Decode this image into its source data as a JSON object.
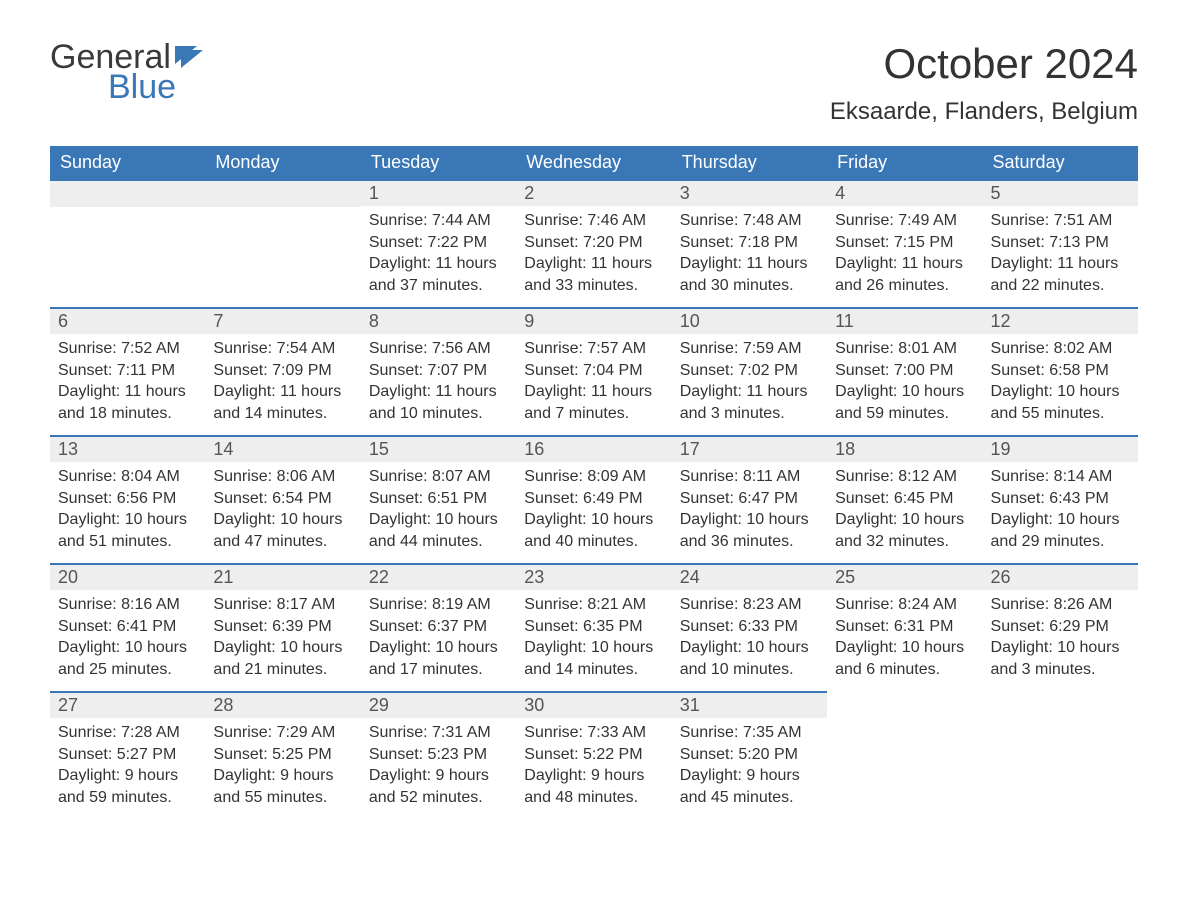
{
  "brand": {
    "name_general": "General",
    "name_blue": "Blue",
    "flag_color": "#3a77b7",
    "text_color": "#3a3a3a"
  },
  "header": {
    "month_title": "October 2024",
    "location": "Eksaarde, Flanders, Belgium"
  },
  "calendar": {
    "type": "table",
    "header_bg": "#3a77b7",
    "header_text_color": "#ffffff",
    "day_bar_bg": "#eeeeee",
    "day_bar_border_top": "#3a77b7",
    "body_text_color": "#333333",
    "background_color": "#ffffff",
    "header_fontsize": 18,
    "daynum_fontsize": 18,
    "body_fontsize": 16,
    "columns": [
      "Sunday",
      "Monday",
      "Tuesday",
      "Wednesday",
      "Thursday",
      "Friday",
      "Saturday"
    ],
    "weeks": [
      [
        null,
        null,
        {
          "num": "1",
          "sunrise": "Sunrise: 7:44 AM",
          "sunset": "Sunset: 7:22 PM",
          "day1": "Daylight: 11 hours",
          "day2": "and 37 minutes."
        },
        {
          "num": "2",
          "sunrise": "Sunrise: 7:46 AM",
          "sunset": "Sunset: 7:20 PM",
          "day1": "Daylight: 11 hours",
          "day2": "and 33 minutes."
        },
        {
          "num": "3",
          "sunrise": "Sunrise: 7:48 AM",
          "sunset": "Sunset: 7:18 PM",
          "day1": "Daylight: 11 hours",
          "day2": "and 30 minutes."
        },
        {
          "num": "4",
          "sunrise": "Sunrise: 7:49 AM",
          "sunset": "Sunset: 7:15 PM",
          "day1": "Daylight: 11 hours",
          "day2": "and 26 minutes."
        },
        {
          "num": "5",
          "sunrise": "Sunrise: 7:51 AM",
          "sunset": "Sunset: 7:13 PM",
          "day1": "Daylight: 11 hours",
          "day2": "and 22 minutes."
        }
      ],
      [
        {
          "num": "6",
          "sunrise": "Sunrise: 7:52 AM",
          "sunset": "Sunset: 7:11 PM",
          "day1": "Daylight: 11 hours",
          "day2": "and 18 minutes."
        },
        {
          "num": "7",
          "sunrise": "Sunrise: 7:54 AM",
          "sunset": "Sunset: 7:09 PM",
          "day1": "Daylight: 11 hours",
          "day2": "and 14 minutes."
        },
        {
          "num": "8",
          "sunrise": "Sunrise: 7:56 AM",
          "sunset": "Sunset: 7:07 PM",
          "day1": "Daylight: 11 hours",
          "day2": "and 10 minutes."
        },
        {
          "num": "9",
          "sunrise": "Sunrise: 7:57 AM",
          "sunset": "Sunset: 7:04 PM",
          "day1": "Daylight: 11 hours",
          "day2": "and 7 minutes."
        },
        {
          "num": "10",
          "sunrise": "Sunrise: 7:59 AM",
          "sunset": "Sunset: 7:02 PM",
          "day1": "Daylight: 11 hours",
          "day2": "and 3 minutes."
        },
        {
          "num": "11",
          "sunrise": "Sunrise: 8:01 AM",
          "sunset": "Sunset: 7:00 PM",
          "day1": "Daylight: 10 hours",
          "day2": "and 59 minutes."
        },
        {
          "num": "12",
          "sunrise": "Sunrise: 8:02 AM",
          "sunset": "Sunset: 6:58 PM",
          "day1": "Daylight: 10 hours",
          "day2": "and 55 minutes."
        }
      ],
      [
        {
          "num": "13",
          "sunrise": "Sunrise: 8:04 AM",
          "sunset": "Sunset: 6:56 PM",
          "day1": "Daylight: 10 hours",
          "day2": "and 51 minutes."
        },
        {
          "num": "14",
          "sunrise": "Sunrise: 8:06 AM",
          "sunset": "Sunset: 6:54 PM",
          "day1": "Daylight: 10 hours",
          "day2": "and 47 minutes."
        },
        {
          "num": "15",
          "sunrise": "Sunrise: 8:07 AM",
          "sunset": "Sunset: 6:51 PM",
          "day1": "Daylight: 10 hours",
          "day2": "and 44 minutes."
        },
        {
          "num": "16",
          "sunrise": "Sunrise: 8:09 AM",
          "sunset": "Sunset: 6:49 PM",
          "day1": "Daylight: 10 hours",
          "day2": "and 40 minutes."
        },
        {
          "num": "17",
          "sunrise": "Sunrise: 8:11 AM",
          "sunset": "Sunset: 6:47 PM",
          "day1": "Daylight: 10 hours",
          "day2": "and 36 minutes."
        },
        {
          "num": "18",
          "sunrise": "Sunrise: 8:12 AM",
          "sunset": "Sunset: 6:45 PM",
          "day1": "Daylight: 10 hours",
          "day2": "and 32 minutes."
        },
        {
          "num": "19",
          "sunrise": "Sunrise: 8:14 AM",
          "sunset": "Sunset: 6:43 PM",
          "day1": "Daylight: 10 hours",
          "day2": "and 29 minutes."
        }
      ],
      [
        {
          "num": "20",
          "sunrise": "Sunrise: 8:16 AM",
          "sunset": "Sunset: 6:41 PM",
          "day1": "Daylight: 10 hours",
          "day2": "and 25 minutes."
        },
        {
          "num": "21",
          "sunrise": "Sunrise: 8:17 AM",
          "sunset": "Sunset: 6:39 PM",
          "day1": "Daylight: 10 hours",
          "day2": "and 21 minutes."
        },
        {
          "num": "22",
          "sunrise": "Sunrise: 8:19 AM",
          "sunset": "Sunset: 6:37 PM",
          "day1": "Daylight: 10 hours",
          "day2": "and 17 minutes."
        },
        {
          "num": "23",
          "sunrise": "Sunrise: 8:21 AM",
          "sunset": "Sunset: 6:35 PM",
          "day1": "Daylight: 10 hours",
          "day2": "and 14 minutes."
        },
        {
          "num": "24",
          "sunrise": "Sunrise: 8:23 AM",
          "sunset": "Sunset: 6:33 PM",
          "day1": "Daylight: 10 hours",
          "day2": "and 10 minutes."
        },
        {
          "num": "25",
          "sunrise": "Sunrise: 8:24 AM",
          "sunset": "Sunset: 6:31 PM",
          "day1": "Daylight: 10 hours",
          "day2": "and 6 minutes."
        },
        {
          "num": "26",
          "sunrise": "Sunrise: 8:26 AM",
          "sunset": "Sunset: 6:29 PM",
          "day1": "Daylight: 10 hours",
          "day2": "and 3 minutes."
        }
      ],
      [
        {
          "num": "27",
          "sunrise": "Sunrise: 7:28 AM",
          "sunset": "Sunset: 5:27 PM",
          "day1": "Daylight: 9 hours",
          "day2": "and 59 minutes."
        },
        {
          "num": "28",
          "sunrise": "Sunrise: 7:29 AM",
          "sunset": "Sunset: 5:25 PM",
          "day1": "Daylight: 9 hours",
          "day2": "and 55 minutes."
        },
        {
          "num": "29",
          "sunrise": "Sunrise: 7:31 AM",
          "sunset": "Sunset: 5:23 PM",
          "day1": "Daylight: 9 hours",
          "day2": "and 52 minutes."
        },
        {
          "num": "30",
          "sunrise": "Sunrise: 7:33 AM",
          "sunset": "Sunset: 5:22 PM",
          "day1": "Daylight: 9 hours",
          "day2": "and 48 minutes."
        },
        {
          "num": "31",
          "sunrise": "Sunrise: 7:35 AM",
          "sunset": "Sunset: 5:20 PM",
          "day1": "Daylight: 9 hours",
          "day2": "and 45 minutes."
        },
        null,
        null
      ]
    ]
  }
}
